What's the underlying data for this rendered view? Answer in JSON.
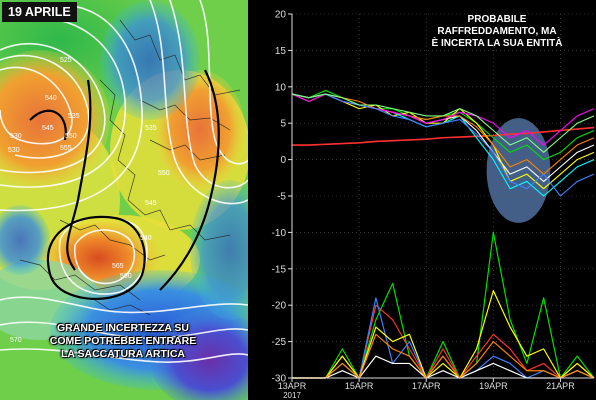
{
  "map": {
    "date_label": "19 APRILE",
    "caption_lines": [
      "GRANDE INCERTEZZA SU",
      "COME POTREBBE ENTRARE",
      "LA SACCATURA ARTICA"
    ],
    "contour_labels": [
      "525",
      "530",
      "530",
      "535",
      "540",
      "545",
      "550",
      "555",
      "560",
      "565",
      "570",
      "535",
      "540",
      "545",
      "550"
    ],
    "colors": {
      "green": "#3fbf3f",
      "yellow": "#e6e63a",
      "orange": "#e58a2a",
      "blue": "#3a6fd6",
      "purple": "#6a2fa8"
    }
  },
  "annotation_lines": [
    "PROBABILE",
    "RAFFREDDAMENTO, MA",
    "È INCERTA LA SUA ENTITÀ"
  ],
  "chart_data": {
    "type": "line",
    "ylim": [
      -30,
      20
    ],
    "yticks": [
      20,
      15,
      10,
      5,
      0,
      -5,
      -10,
      -15,
      -20,
      -25,
      -30
    ],
    "xlim": [
      0,
      9
    ],
    "xticks": [
      {
        "x": 0,
        "label": "13APR",
        "sub": "2017"
      },
      {
        "x": 2,
        "label": "15APR",
        "sub": ""
      },
      {
        "x": 4,
        "label": "17APR",
        "sub": ""
      },
      {
        "x": 6,
        "label": "19APR",
        "sub": ""
      },
      {
        "x": 8,
        "label": "21APR",
        "sub": ""
      }
    ],
    "x": [
      0,
      0.5,
      1,
      1.5,
      2,
      2.5,
      3,
      3.5,
      4,
      4.5,
      5,
      5.5,
      6,
      6.5,
      7,
      7.5,
      8,
      8.5,
      9
    ],
    "temperature_series": [
      {
        "color": "#ffffff",
        "values": [
          9,
          8.5,
          9,
          8,
          7.5,
          7,
          6.5,
          6,
          5,
          5.5,
          6,
          4,
          1,
          -2,
          -1,
          -3,
          -1,
          1,
          2
        ]
      },
      {
        "color": "#00e000",
        "values": [
          9,
          8.5,
          9.5,
          8.5,
          7.5,
          7,
          7,
          6,
          5.5,
          6,
          6.5,
          5,
          3,
          1,
          2,
          0,
          1,
          3,
          4
        ]
      },
      {
        "color": "#ffff00",
        "values": [
          9,
          8,
          9,
          8,
          7,
          7.5,
          6,
          6.5,
          5,
          5,
          7,
          5,
          2,
          -3,
          -2,
          -4,
          -2,
          0,
          1
        ]
      },
      {
        "color": "#00ffff",
        "values": [
          9,
          8.5,
          9,
          8,
          7.5,
          7,
          6.5,
          5.5,
          4.5,
          5,
          6,
          3,
          0,
          -4,
          -3,
          -5,
          -3,
          -1,
          0
        ]
      },
      {
        "color": "#ff8000",
        "values": [
          9,
          8.5,
          9,
          8.5,
          8,
          7,
          6.5,
          6,
          5.5,
          6,
          6,
          4.5,
          2,
          -1,
          0,
          -2,
          0,
          2,
          3
        ]
      },
      {
        "color": "#ff00ff",
        "values": [
          9,
          8,
          9,
          8,
          7.5,
          7,
          6.5,
          6,
          5,
          5.5,
          6.5,
          6,
          5,
          3,
          4,
          2,
          4,
          6,
          7
        ]
      },
      {
        "color": "#4080ff",
        "values": [
          9,
          8.5,
          9,
          8,
          7.5,
          7,
          6,
          5.5,
          4.5,
          5,
          5.5,
          3.5,
          1,
          -3,
          -4,
          -2,
          -5,
          -3,
          -2
        ]
      },
      {
        "color": "#80ff80",
        "values": [
          9,
          8.5,
          9,
          8.5,
          7.5,
          7.5,
          7,
          6.5,
          6,
          6,
          7,
          6,
          4,
          2,
          3,
          1,
          3,
          5,
          6
        ]
      }
    ],
    "reference_series": {
      "color": "#ff3030",
      "values": [
        2,
        2,
        2.1,
        2.2,
        2.3,
        2.5,
        2.6,
        2.7,
        2.8,
        3,
        3.1,
        3.2,
        3.3,
        3.5,
        3.6,
        3.8,
        4,
        4.2,
        4.4
      ]
    },
    "precip_x": [
      0,
      0.5,
      1,
      1.5,
      2,
      2.5,
      3,
      3.5,
      4,
      4.5,
      5,
      5.5,
      6,
      6.5,
      7,
      7.5,
      8,
      8.5,
      9
    ],
    "precip_series": [
      {
        "color": "#00e000",
        "values": [
          -30,
          -30,
          -30,
          -26,
          -30,
          -22,
          -17,
          -27,
          -30,
          -25,
          -30,
          -28,
          -10,
          -22,
          -28,
          -19,
          -30,
          -27,
          -30
        ]
      },
      {
        "color": "#ff3030",
        "values": [
          -30,
          -30,
          -30,
          -27,
          -30,
          -20,
          -22,
          -26,
          -30,
          -26,
          -30,
          -27,
          -24,
          -26,
          -29,
          -28,
          -30,
          -28,
          -30
        ]
      },
      {
        "color": "#4080ff",
        "values": [
          -30,
          -30,
          -30,
          -28,
          -30,
          -19,
          -28,
          -25,
          -30,
          -27,
          -30,
          -29,
          -27,
          -28,
          -30,
          -29,
          -30,
          -29,
          -30
        ]
      },
      {
        "color": "#ffff00",
        "values": [
          -30,
          -30,
          -30,
          -27,
          -30,
          -23,
          -25,
          -24,
          -30,
          -28,
          -30,
          -26,
          -18,
          -23,
          -27,
          -26,
          -30,
          -28,
          -30
        ]
      },
      {
        "color": "#ffffff",
        "values": [
          -30,
          -30,
          -30,
          -29,
          -30,
          -27,
          -28,
          -28,
          -30,
          -29,
          -30,
          -29,
          -28,
          -29,
          -30,
          -30,
          -30,
          -29,
          -30
        ]
      },
      {
        "color": "#ff8000",
        "values": [
          -30,
          -30,
          -30,
          -28,
          -30,
          -24,
          -26,
          -27,
          -30,
          -27,
          -30,
          -28,
          -25,
          -27,
          -29,
          -29,
          -30,
          -29,
          -30
        ]
      }
    ],
    "highlight_ellipse": {
      "x_center": 6.75,
      "y_center": -1.5,
      "x_radius": 0.95,
      "y_radius": 7.2,
      "color": "#5a7fb5"
    }
  }
}
